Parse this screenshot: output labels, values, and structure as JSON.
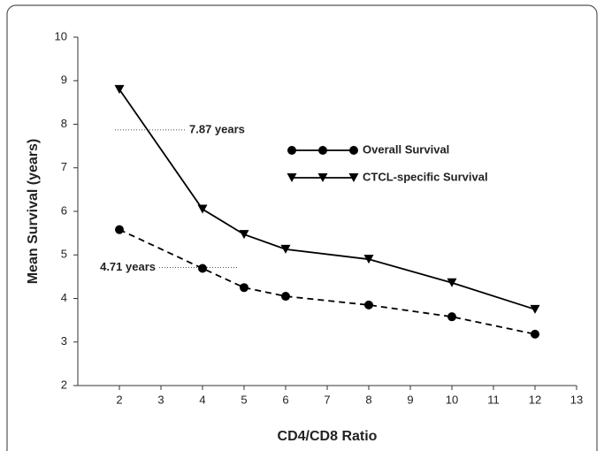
{
  "chart_data": {
    "type": "line",
    "x_label": "CD4/CD8 Ratio",
    "y_label": "Mean Survival (years)",
    "x": [
      2,
      4,
      5,
      6,
      8,
      10,
      12
    ],
    "series": [
      {
        "name": "Overall Survival",
        "color": "#000000",
        "marker": "circle",
        "dash": true,
        "values": [
          5.58,
          4.69,
          4.25,
          4.05,
          3.85,
          3.58,
          3.18
        ]
      },
      {
        "name": "CTCL-specific Survival",
        "color": "#000000",
        "marker": "triangle-down",
        "dash": false,
        "values": [
          8.8,
          6.05,
          5.47,
          5.13,
          4.9,
          4.36,
          3.75
        ]
      }
    ],
    "annotations": [
      {
        "label": "7.87 years",
        "value": 7.87
      },
      {
        "label": "4.71 years",
        "value": 4.71
      }
    ],
    "xlim": [
      1,
      13
    ],
    "xticks": [
      2,
      3,
      4,
      5,
      6,
      7,
      8,
      9,
      10,
      11,
      12,
      13
    ],
    "ylim": [
      2,
      10
    ],
    "yticks": [
      2,
      3,
      4,
      5,
      6,
      7,
      8,
      9,
      10
    ],
    "grid": false
  }
}
